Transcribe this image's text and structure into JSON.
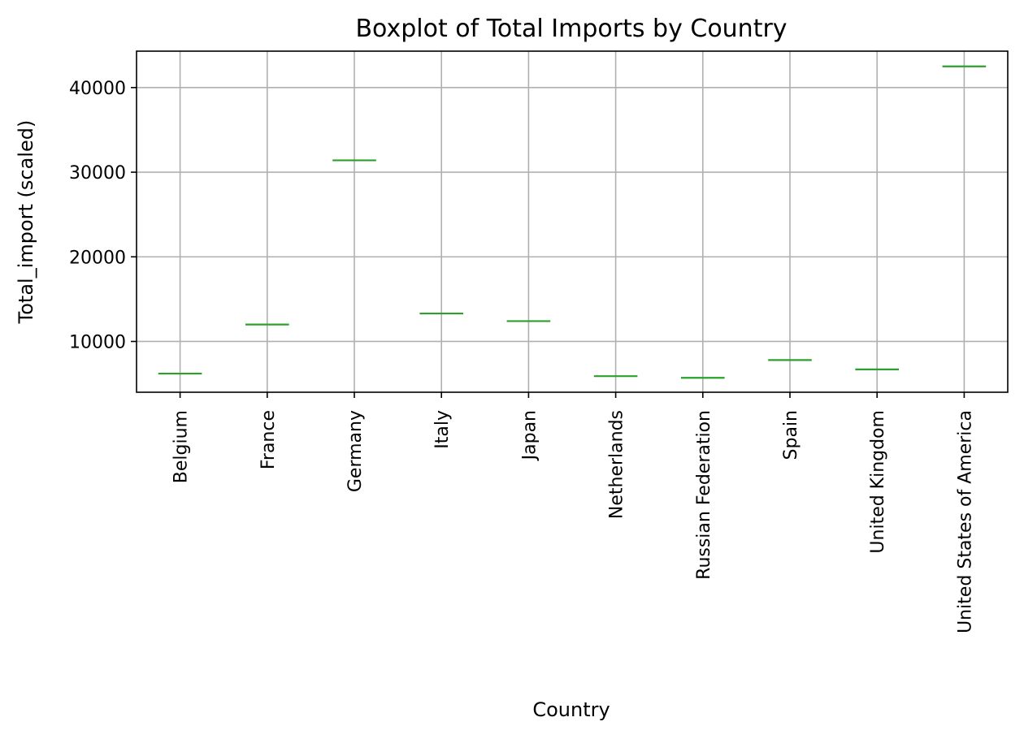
{
  "chart_data": {
    "type": "box",
    "title": "Boxplot of Total Imports by Country",
    "xlabel": "Country",
    "ylabel": "Total_import (scaled)",
    "categories": [
      "Belgium",
      "France",
      "Germany",
      "Italy",
      "Japan",
      "Netherlands",
      "Russian Federation",
      "Spain",
      "United Kingdom",
      "United States of America"
    ],
    "values": [
      6200,
      12000,
      31400,
      13300,
      12400,
      5900,
      5700,
      7800,
      6700,
      42500
    ],
    "ylim": [
      4000,
      44300
    ],
    "yticks": [
      10000,
      20000,
      30000,
      40000
    ],
    "grid": true,
    "median_color": "#2ca02c"
  }
}
